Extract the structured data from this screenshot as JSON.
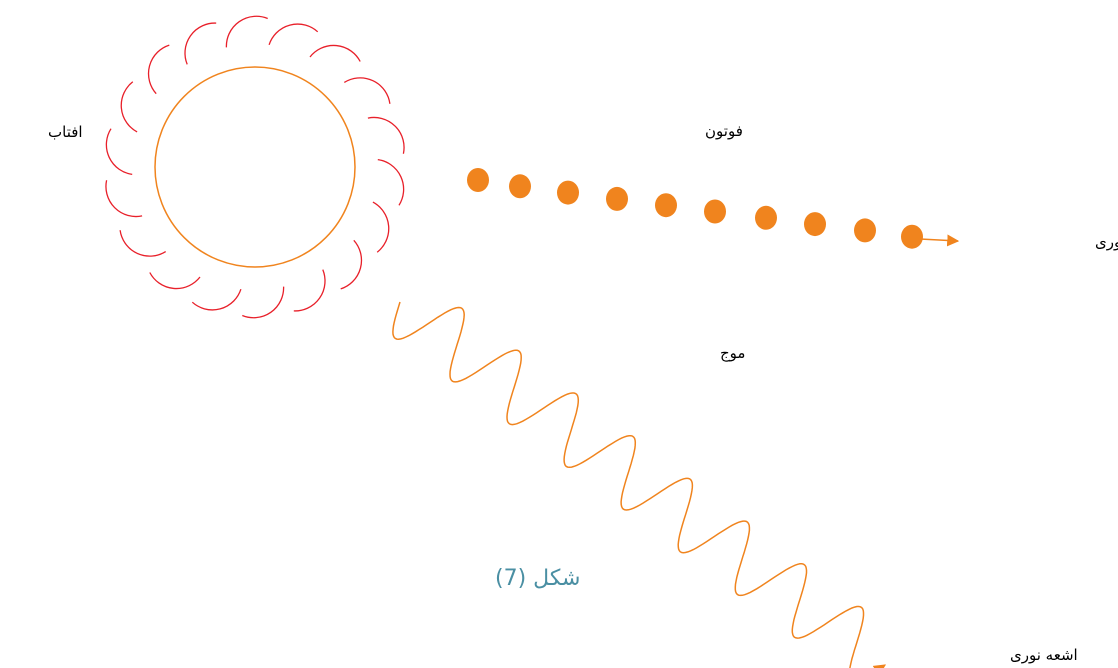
{
  "labels": {
    "sun": "افتاب",
    "photon": "فوتون",
    "ray_top": "اشعه نوری",
    "wave": "موج",
    "ray_bottom": "اشعه نوری"
  },
  "caption": "شکل (7)"
}
